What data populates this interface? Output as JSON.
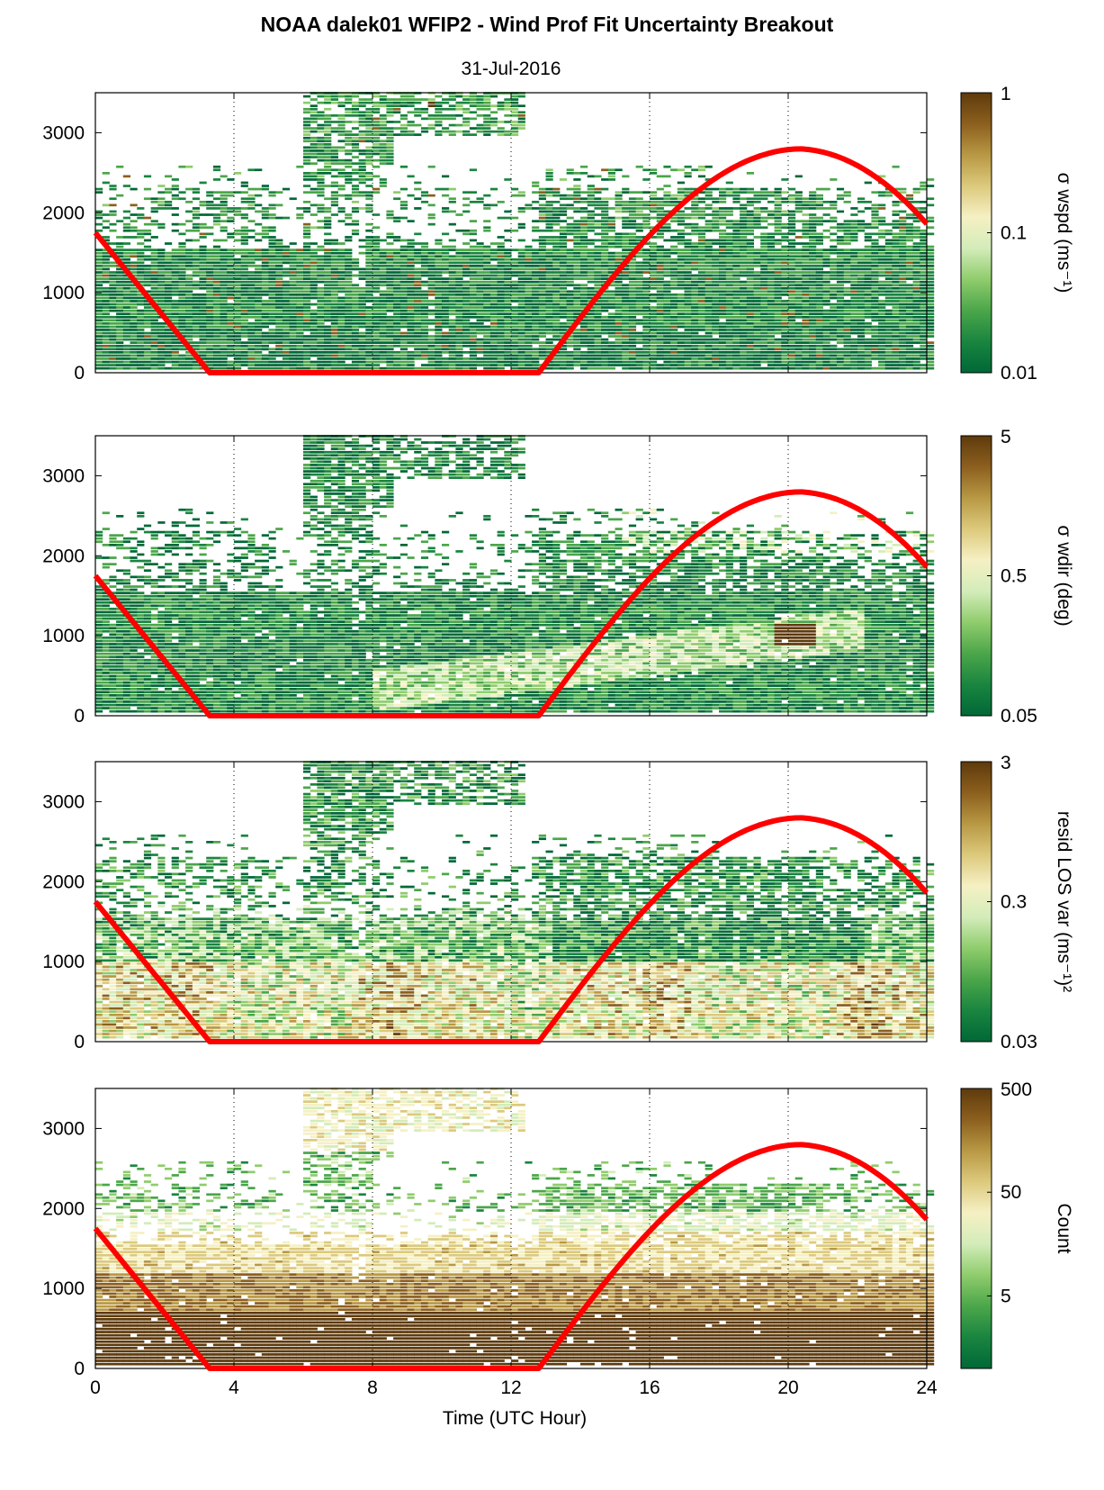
{
  "figure": {
    "title": "NOAA dalek01 WFIP2 - Wind Prof Fit Uncertainty Breakout",
    "subtitle": "31-Jul-2016",
    "xlabel": "Time (UTC Hour)"
  },
  "colors": {
    "sun_line": "#ff0000",
    "colormap": [
      "#006837",
      "#1a8540",
      "#4ba64a",
      "#8fcc6c",
      "#d3ecb9",
      "#f5f0c4",
      "#dcc97c",
      "#b89844",
      "#8c5f1e",
      "#5e3a0c"
    ]
  },
  "chart_data": [
    {
      "type": "heatmap",
      "name": "wspd-uncertainty",
      "x_range": [
        0,
        24
      ],
      "y_range": [
        0,
        3500
      ],
      "x_ticks": [
        0,
        4,
        8,
        12,
        16,
        20,
        24
      ],
      "x_tick_labels": [
        "0",
        "4",
        "8",
        "12",
        "16",
        "20",
        "24"
      ],
      "y_ticks": [
        0,
        1000,
        2000,
        3000
      ],
      "y_tick_labels": [
        "0",
        "1000",
        "2000",
        "3000"
      ],
      "vertical_grid": "dotted",
      "colorbar": {
        "label": "σ wspd (ms⁻¹)",
        "scale": "log",
        "min": 0.01,
        "max": 1,
        "tick_values": [
          0.01,
          0.1,
          1
        ],
        "tick_labels": [
          "0.01",
          "0.1",
          "1"
        ]
      },
      "solar_elevation_line": {
        "x": [
          0,
          3.3,
          12.8,
          14,
          16,
          18,
          20,
          22,
          24
        ],
        "y": [
          1750,
          0,
          0,
          600,
          1650,
          2450,
          2800,
          2600,
          1850
        ]
      }
    },
    {
      "type": "heatmap",
      "name": "wdir-uncertainty",
      "x_range": [
        0,
        24
      ],
      "y_range": [
        0,
        3500
      ],
      "x_ticks": [
        0,
        4,
        8,
        12,
        16,
        20,
        24
      ],
      "x_tick_labels": [
        "0",
        "4",
        "8",
        "12",
        "16",
        "20",
        "24"
      ],
      "y_ticks": [
        0,
        1000,
        2000,
        3000
      ],
      "y_tick_labels": [
        "0",
        "1000",
        "2000",
        "3000"
      ],
      "vertical_grid": "dotted",
      "colorbar": {
        "label": "σ wdir (deg)",
        "scale": "log",
        "min": 0.05,
        "max": 5,
        "tick_values": [
          0.05,
          0.5,
          5
        ],
        "tick_labels": [
          "0.05",
          "0.5",
          "5"
        ]
      },
      "solar_elevation_line": {
        "x": [
          0,
          3.3,
          12.8,
          14,
          16,
          18,
          20,
          22,
          24
        ],
        "y": [
          1750,
          0,
          0,
          600,
          1650,
          2450,
          2800,
          2600,
          1850
        ]
      }
    },
    {
      "type": "heatmap",
      "name": "residual-los-variance",
      "x_range": [
        0,
        24
      ],
      "y_range": [
        0,
        3500
      ],
      "x_ticks": [
        0,
        4,
        8,
        12,
        16,
        20,
        24
      ],
      "x_tick_labels": [
        "0",
        "4",
        "8",
        "12",
        "16",
        "20",
        "24"
      ],
      "y_ticks": [
        0,
        1000,
        2000,
        3000
      ],
      "y_tick_labels": [
        "0",
        "1000",
        "2000",
        "3000"
      ],
      "vertical_grid": "dotted",
      "colorbar": {
        "label": "resid LOS var (ms⁻¹)²",
        "scale": "log",
        "min": 0.03,
        "max": 3,
        "tick_values": [
          0.03,
          0.3,
          3
        ],
        "tick_labels": [
          "0.03",
          "0.3",
          "3"
        ]
      },
      "solar_elevation_line": {
        "x": [
          0,
          3.3,
          12.8,
          14,
          16,
          18,
          20,
          22,
          24
        ],
        "y": [
          1750,
          0,
          0,
          600,
          1650,
          2450,
          2800,
          2600,
          1850
        ]
      }
    },
    {
      "type": "heatmap",
      "name": "count",
      "x_range": [
        0,
        24
      ],
      "y_range": [
        0,
        3500
      ],
      "x_ticks": [
        0,
        4,
        8,
        12,
        16,
        20,
        24
      ],
      "x_tick_labels": [
        "0",
        "4",
        "8",
        "12",
        "16",
        "20",
        "24"
      ],
      "y_ticks": [
        0,
        1000,
        2000,
        3000
      ],
      "y_tick_labels": [
        "0",
        "1000",
        "2000",
        "3000"
      ],
      "vertical_grid": "dotted",
      "colorbar": {
        "label": "Count",
        "scale": "log",
        "min": 1,
        "max": 500,
        "tick_values": [
          5,
          50,
          500
        ],
        "tick_labels": [
          "5",
          "50",
          "500"
        ]
      },
      "solar_elevation_line": {
        "x": [
          0,
          3.3,
          12.8,
          14,
          16,
          18,
          20,
          22,
          24
        ],
        "y": [
          1750,
          0,
          0,
          600,
          1650,
          2450,
          2800,
          2600,
          1850
        ]
      }
    }
  ]
}
